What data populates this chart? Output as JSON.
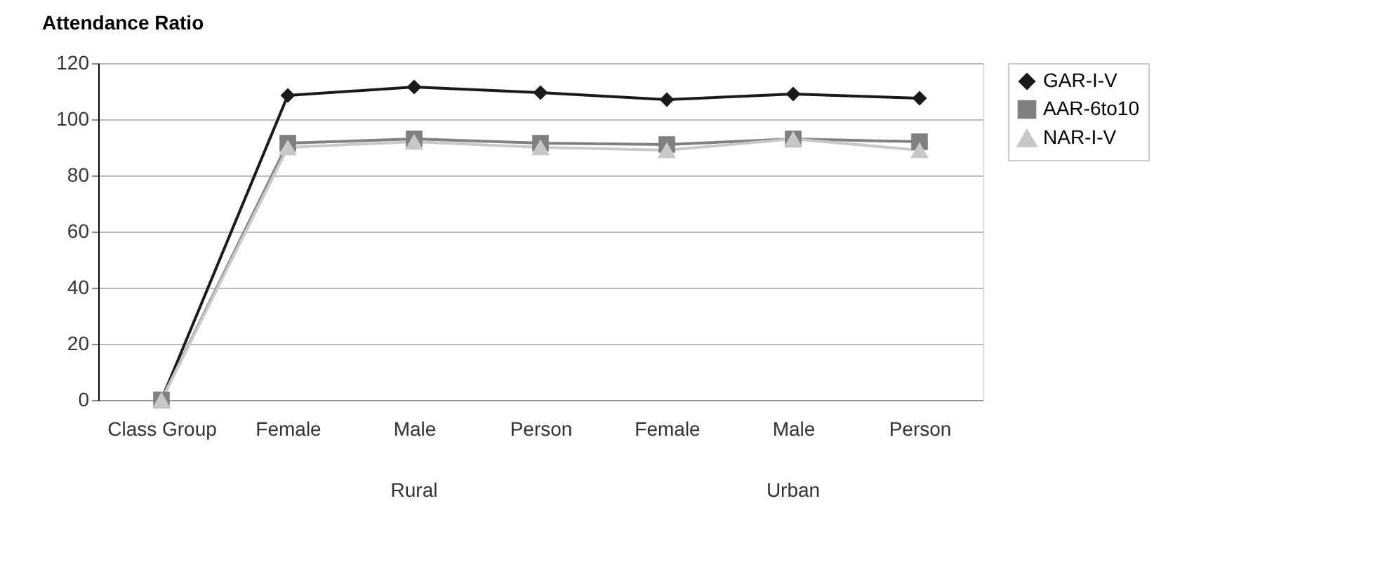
{
  "chart_data": {
    "type": "line",
    "title": "Attendance Ratio",
    "categories": [
      "Class Group",
      "Female",
      "Male",
      "Person",
      "Female",
      "Male",
      "Person"
    ],
    "series": [
      {
        "name": "GAR-I-V",
        "color": "#1a1a1a",
        "marker": "diamond",
        "values": [
          0,
          108.5,
          111.5,
          109.5,
          107,
          109,
          107.5
        ]
      },
      {
        "name": "AAR-6to10",
        "color": "#808080",
        "marker": "square",
        "values": [
          0,
          91.5,
          93,
          91.5,
          91,
          93,
          92
        ]
      },
      {
        "name": "NAR-I-V",
        "color": "#c8c8c8",
        "marker": "triangle",
        "values": [
          0,
          90,
          92,
          90,
          89,
          93,
          89
        ]
      }
    ],
    "annotations": [
      "Rural",
      "Urban"
    ],
    "ylim": [
      0,
      120
    ],
    "yticks": [
      0,
      20,
      40,
      60,
      80,
      100,
      120
    ],
    "grid": "y",
    "legend": "right",
    "line_style": "solid"
  }
}
